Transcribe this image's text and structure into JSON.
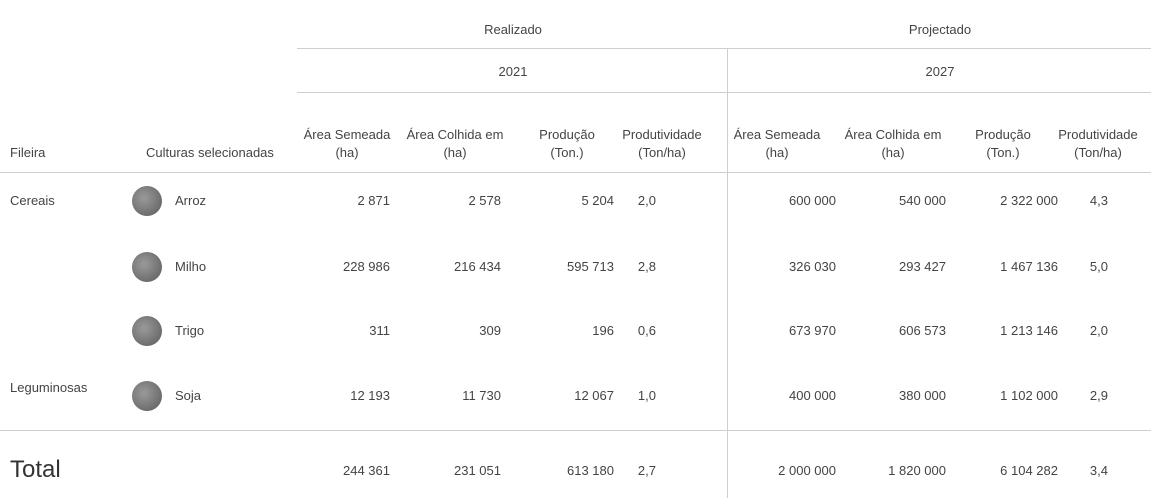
{
  "header": {
    "groups": [
      "Realizado",
      "Projectado"
    ],
    "years": [
      "2021",
      "2027"
    ],
    "fileira": "Fileira",
    "culturas": "Culturas selecionadas",
    "columns": [
      [
        "Área Semeada",
        "(ha)"
      ],
      [
        "Área Colhida em",
        "(ha)"
      ],
      [
        "Produção",
        "(Ton.)"
      ],
      [
        "Produtividade",
        "(Ton/ha)"
      ],
      [
        "Área Semeada",
        "(ha)"
      ],
      [
        "Área Colhida em",
        "(ha)"
      ],
      [
        "Produção",
        "(Ton.)"
      ],
      [
        "Produtividade",
        "(Ton/ha)"
      ]
    ]
  },
  "rows": [
    {
      "fileira": "Cereais",
      "cultura": "Arroz",
      "values": [
        "2 871",
        "2 578",
        "5 204",
        "2,0",
        "600 000",
        "540 000",
        "2 322 000",
        "4,3"
      ]
    },
    {
      "fileira": null,
      "cultura": "Milho",
      "values": [
        "228 986",
        "216 434",
        "595 713",
        "2,8",
        "326 030",
        "293 427",
        "1 467 136",
        "5,0"
      ]
    },
    {
      "fileira": null,
      "cultura": "Trigo",
      "values": [
        "311",
        "309",
        "196",
        "0,6",
        "673 970",
        "606 573",
        "1 213 146",
        "2,0"
      ]
    },
    {
      "fileira": "Leguminosas",
      "cultura": "Soja",
      "values": [
        "12 193",
        "11 730",
        "12 067",
        "1,0",
        "400 000",
        "380 000",
        "1 102 000",
        "2,9"
      ]
    }
  ],
  "total": {
    "label": "Total",
    "values": [
      "244 361",
      "231 051",
      "613 180",
      "2,7",
      "2 000 000",
      "1 820 000",
      "6 104 282",
      "3,4"
    ]
  }
}
